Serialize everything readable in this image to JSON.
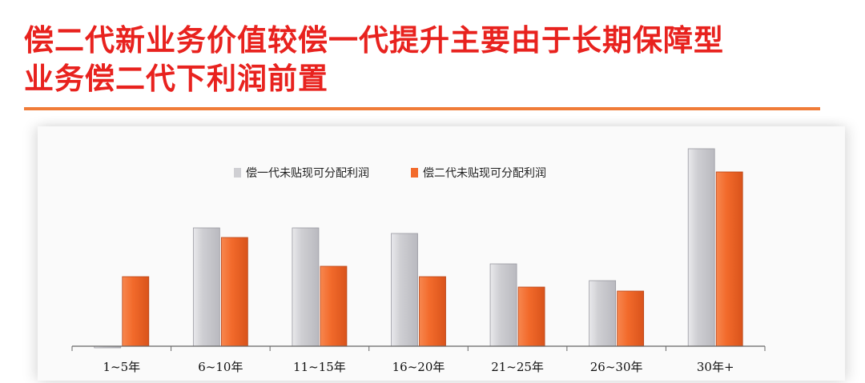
{
  "title": {
    "line1": "偿二代新业务价值较偿一代提升主要由于长期保障型",
    "line2": "业务偿二代下利润前置"
  },
  "colors": {
    "title": "#e8221e",
    "rule": "#f07c38",
    "series1": "#cfcfd3",
    "series2": "#f26a2b"
  },
  "chart_data": {
    "type": "bar",
    "categories": [
      "1~5年",
      "6~10年",
      "11~15年",
      "16~20年",
      "21~25年",
      "26~30年",
      "30年+"
    ],
    "series": [
      {
        "name": "偿一代未贴现可分配利润",
        "values": [
          -2,
          148,
          148,
          141,
          103,
          82,
          247
        ]
      },
      {
        "name": "偿二代未贴现可分配利润",
        "values": [
          87,
          136,
          100,
          87,
          74,
          69,
          218
        ]
      }
    ],
    "ylim": [
      -5,
      250
    ],
    "legend": "top",
    "grid": false
  }
}
